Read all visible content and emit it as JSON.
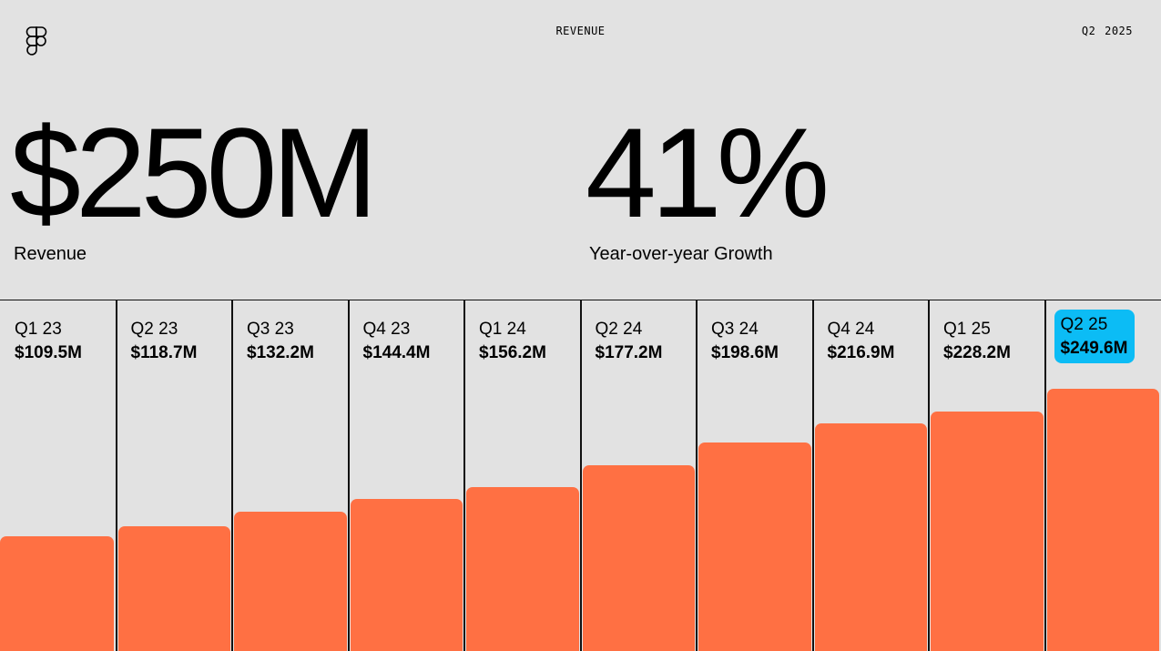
{
  "header": {
    "title": "REVENUE",
    "period": "Q2 2025",
    "logo_icon": "figma-logo"
  },
  "kpis": [
    {
      "value": "$250M",
      "label": "Revenue"
    },
    {
      "value": "41%",
      "label": "Year-over-year Growth"
    }
  ],
  "colors": {
    "background": "#e2e2e2",
    "bar": "#ff7043",
    "highlight": "#0cbcf5"
  },
  "chart_data": {
    "type": "bar",
    "categories": [
      "Q1 23",
      "Q2 23",
      "Q3 23",
      "Q4 23",
      "Q1 24",
      "Q2 24",
      "Q3 24",
      "Q4 24",
      "Q1 25",
      "Q2 25"
    ],
    "value_labels": [
      "$109.5M",
      "$118.7M",
      "$132.2M",
      "$144.4M",
      "$156.2M",
      "$177.2M",
      "$198.6M",
      "$216.9M",
      "$228.2M",
      "$249.6M"
    ],
    "values": [
      109.5,
      118.7,
      132.2,
      144.4,
      156.2,
      177.2,
      198.6,
      216.9,
      228.2,
      249.6
    ],
    "highlight_index": 9,
    "title": "",
    "xlabel": "",
    "ylabel": "",
    "grid": false
  }
}
